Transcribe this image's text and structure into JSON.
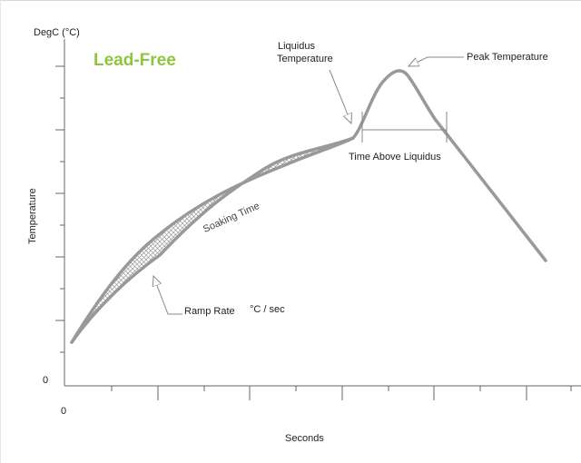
{
  "title": "Lead-Free",
  "title_color": "#8cc63f",
  "curve_color": "#999999",
  "axis_color": "#666666",
  "labels": {
    "y_unit": "DegC (°C)",
    "y_axis": "Temperature",
    "x_axis": "Seconds",
    "y_zero": "0",
    "x_zero": "0",
    "liquidus_temperature": "Liquidus\nTemperature",
    "liquidus_line1": "Liquidus",
    "liquidus_line2": "Temperature",
    "peak_temperature": "Peak Temperature",
    "time_above_liquidus": "Time Above Liquidus",
    "soaking_time": "Soaking Time",
    "ramp_rate": "Ramp Rate",
    "ramp_rate_unit": "°C / sec"
  }
}
